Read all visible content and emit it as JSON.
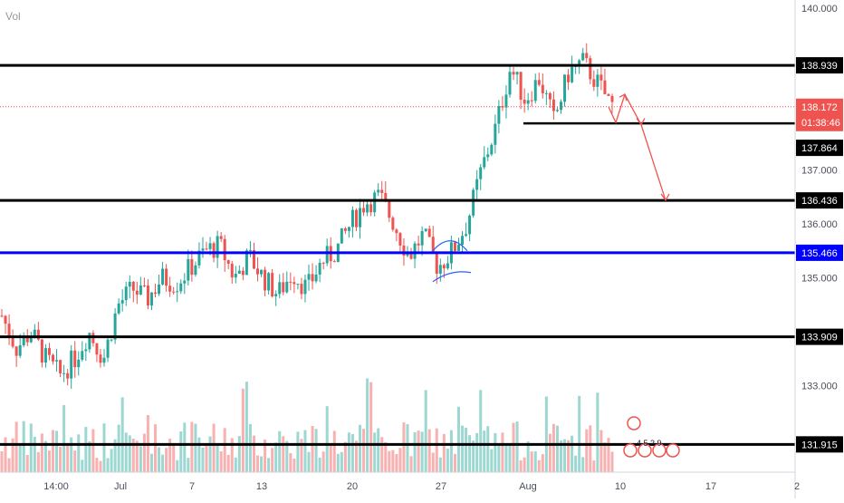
{
  "chart_data": {
    "type": "candlestick",
    "indicator_label": "Vol",
    "y_axis": {
      "min": 131.4,
      "max": 140.15,
      "ticks": [
        "140.000",
        "137.000",
        "136.000",
        "135.000",
        "133.000"
      ]
    },
    "x_axis": {
      "ticks": [
        "14:00",
        "Jul",
        "7",
        "13",
        "20",
        "27",
        "Aug",
        "10",
        "17",
        "2"
      ]
    },
    "horizontal_levels": [
      {
        "value": 138.939,
        "label": "138.939",
        "color": "#000000"
      },
      {
        "value": 136.436,
        "label": "136.436",
        "color": "#000000"
      },
      {
        "value": 135.466,
        "label": "135.466",
        "color": "#0000ff"
      },
      {
        "value": 133.909,
        "label": "133.909",
        "color": "#000000"
      },
      {
        "value": 131.915,
        "label": "131.915",
        "color": "#000000"
      }
    ],
    "support_line": {
      "value": 137.864,
      "label": "137.864"
    },
    "current_price": {
      "value": 138.172,
      "label": "138.172",
      "countdown": "01:38:46",
      "color": "#ef5350"
    },
    "projection_path": [
      138.17,
      137.88,
      138.4,
      137.84,
      136.44
    ],
    "price_path": [
      134.3,
      133.7,
      134.0,
      133.5,
      133.2,
      133.5,
      134.0,
      133.5,
      134.5,
      134.8,
      134.6,
      135.0,
      134.9,
      135.2,
      135.5,
      135.6,
      135.0,
      135.4,
      135.0,
      134.7,
      135.1,
      134.8,
      135.3,
      135.5,
      136.0,
      136.4,
      136.5,
      136.0,
      135.4,
      135.8,
      135.2,
      135.5,
      136.0,
      137.0,
      137.8,
      138.9,
      138.3,
      138.7,
      137.9,
      138.8,
      139.0,
      138.6,
      138.2
    ],
    "up_color": "#26a69a",
    "down_color": "#ef5350",
    "grid": false,
    "events_label": "4 5 2 9"
  }
}
